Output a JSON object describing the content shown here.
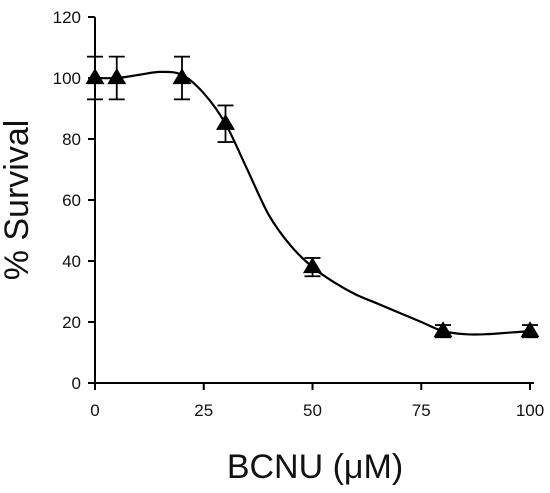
{
  "chart_data": {
    "type": "line",
    "title": "",
    "xlabel": "BCNU (μM)",
    "ylabel": "% Survival",
    "xlim": [
      0,
      100
    ],
    "ylim": [
      0,
      120
    ],
    "xticks": [
      0,
      25,
      50,
      75,
      100
    ],
    "yticks": [
      0,
      20,
      40,
      60,
      80,
      100,
      120
    ],
    "grid": false,
    "legend": "none",
    "marker": "filled-triangle",
    "color": "#000000",
    "series": [
      {
        "points": [
          {
            "x": 0,
            "y": 100,
            "err": 7
          },
          {
            "x": 5,
            "y": 100,
            "err": 7
          },
          {
            "x": 20,
            "y": 100,
            "err": 7
          },
          {
            "x": 30,
            "y": 85,
            "err": 6
          },
          {
            "x": 50,
            "y": 38,
            "err": 3
          },
          {
            "x": 80,
            "y": 17,
            "err": 2
          },
          {
            "x": 100,
            "y": 17,
            "err": 2
          }
        ],
        "curve": [
          [
            0,
            100
          ],
          [
            5,
            100
          ],
          [
            10,
            101
          ],
          [
            15,
            102
          ],
          [
            20,
            101
          ],
          [
            25,
            95
          ],
          [
            30,
            85
          ],
          [
            35,
            70
          ],
          [
            40,
            55
          ],
          [
            45,
            45
          ],
          [
            50,
            38
          ],
          [
            55,
            33
          ],
          [
            60,
            29
          ],
          [
            65,
            26
          ],
          [
            70,
            23
          ],
          [
            75,
            20
          ],
          [
            80,
            17
          ],
          [
            85,
            16
          ],
          [
            90,
            16
          ],
          [
            95,
            16.5
          ],
          [
            100,
            17
          ]
        ]
      }
    ]
  }
}
